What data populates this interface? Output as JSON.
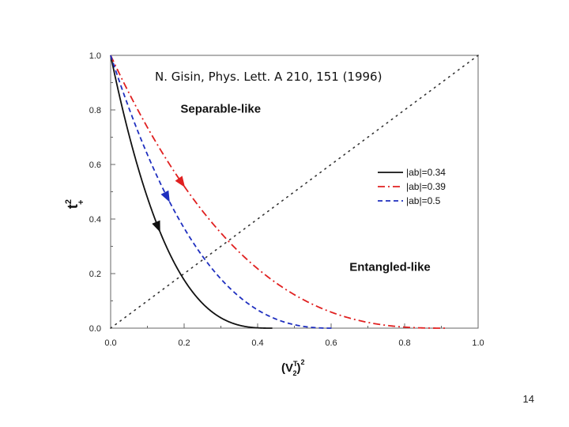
{
  "slide": {
    "page_number": "14"
  },
  "chart_data": {
    "type": "line",
    "annotation": "N. Gisin, Phys. Lett. A 210, 151 (1996)",
    "xlabel": {
      "base": "(V",
      "sup": "T",
      "sub": "2",
      "close": ")",
      "power": "2"
    },
    "ylabel": {
      "base": "t",
      "sup": "2",
      "sub": "+"
    },
    "xlim": [
      0,
      1
    ],
    "ylim": [
      0,
      1
    ],
    "xticks": [
      "0.0",
      "0.2",
      "0.4",
      "0.6",
      "0.8",
      "1.0"
    ],
    "yticks": [
      "0.0",
      "0.2",
      "0.4",
      "0.6",
      "0.8",
      "1.0"
    ],
    "regions": [
      {
        "label": "Separable-like",
        "x": 0.19,
        "y": 0.79
      },
      {
        "label": "Entangled-like",
        "x": 0.65,
        "y": 0.21
      }
    ],
    "diagonal": {
      "style": "dotted",
      "from": [
        0,
        0
      ],
      "to": [
        1,
        1
      ]
    },
    "legend": {
      "position": "right-middle"
    },
    "series": [
      {
        "name": "|ab|=0.34",
        "color": "#111111",
        "dash": "solid",
        "a": 0.44,
        "p": 0.35,
        "arrow_x": 0.13
      },
      {
        "name": "|ab|=0.39",
        "color": "#e02020",
        "dash": "dashdot",
        "a": 0.91,
        "p": 0.38,
        "arrow_x": 0.195
      },
      {
        "name": "|ab|=0.5",
        "color": "#1f2fbf",
        "dash": "dash",
        "a": 0.605,
        "p": 0.4,
        "arrow_x": 0.155
      }
    ]
  }
}
